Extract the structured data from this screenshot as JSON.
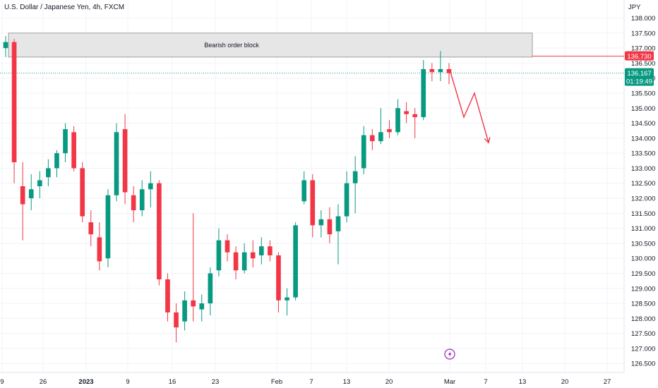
{
  "chart_data": {
    "type": "candlestick",
    "title": "U.S. Dollar / Japanese Yen, 4h, FXCM",
    "y_unit": "JPY",
    "ylim": [
      126.2,
      138.6
    ],
    "y_ticks": [
      "126.500",
      "127.000",
      "127.500",
      "128.000",
      "128.500",
      "129.000",
      "129.500",
      "130.000",
      "130.500",
      "131.000",
      "131.500",
      "132.000",
      "132.500",
      "133.000",
      "133.500",
      "134.000",
      "134.500",
      "135.000",
      "135.500",
      "136.000",
      "136.500",
      "137.000",
      "137.500",
      "138.000"
    ],
    "x_ticks": [
      "9",
      "26",
      "2023",
      "9",
      "16",
      "23",
      "Feb",
      "7",
      "13",
      "20",
      "Mar",
      "7",
      "13",
      "20",
      "27"
    ],
    "x_tick_bold": [
      "2023"
    ],
    "colors": {
      "up": "#089981",
      "down": "#f23645",
      "zone_fill": "#e6e6e6",
      "zone_border": "#9e9e9e",
      "grid": "#f0f3fa",
      "projection": "#f23645",
      "current_price": "#089981",
      "zone_level": "#f23645"
    },
    "annotations": {
      "order_block": {
        "label": "Bearish order block",
        "price_top": 137.5,
        "price_bottom": 136.7
      },
      "zone_level": {
        "price": 136.73,
        "label": "136.730"
      },
      "current_price": {
        "price": 136.167,
        "label": "136.167",
        "countdown": "01:19:49"
      },
      "projection": {
        "points": [
          136.2,
          134.7,
          135.5,
          133.85
        ]
      },
      "event_marker": "lightning-icon"
    },
    "series": [
      {
        "x": "Dec 19",
        "o": 137.0,
        "h": 137.4,
        "l": 136.7,
        "c": 137.2
      },
      {
        "x": "Dec 20",
        "o": 137.2,
        "h": 137.3,
        "l": 132.5,
        "c": 133.2
      },
      {
        "x": "Dec 21",
        "o": 132.4,
        "h": 133.2,
        "l": 130.6,
        "c": 131.8
      },
      {
        "x": "Dec 22",
        "o": 132.0,
        "h": 132.8,
        "l": 131.6,
        "c": 132.3
      },
      {
        "x": "Dec 23",
        "o": 132.4,
        "h": 132.9,
        "l": 132.0,
        "c": 132.6
      },
      {
        "x": "Dec 26",
        "o": 132.7,
        "h": 133.3,
        "l": 132.4,
        "c": 133.0
      },
      {
        "x": "Dec 27",
        "o": 133.0,
        "h": 133.6,
        "l": 132.7,
        "c": 133.5
      },
      {
        "x": "Dec 28",
        "o": 133.5,
        "h": 134.5,
        "l": 133.2,
        "c": 134.3
      },
      {
        "x": "Dec 29",
        "o": 134.2,
        "h": 134.4,
        "l": 132.9,
        "c": 133.0
      },
      {
        "x": "Dec 30",
        "o": 133.0,
        "h": 133.2,
        "l": 131.2,
        "c": 131.4
      },
      {
        "x": "Jan 2",
        "o": 131.2,
        "h": 131.6,
        "l": 130.4,
        "c": 130.8
      },
      {
        "x": "Jan 3",
        "o": 130.7,
        "h": 131.2,
        "l": 129.6,
        "c": 129.9
      },
      {
        "x": "Jan 4",
        "o": 130.0,
        "h": 132.3,
        "l": 129.7,
        "c": 132.1
      },
      {
        "x": "Jan 5",
        "o": 132.1,
        "h": 134.5,
        "l": 131.9,
        "c": 134.2
      },
      {
        "x": "Jan 6",
        "o": 134.3,
        "h": 134.8,
        "l": 131.8,
        "c": 132.2
      },
      {
        "x": "Jan 9",
        "o": 132.1,
        "h": 132.4,
        "l": 131.2,
        "c": 131.6
      },
      {
        "x": "Jan 10",
        "o": 131.6,
        "h": 132.6,
        "l": 131.4,
        "c": 132.3
      },
      {
        "x": "Jan 11",
        "o": 132.3,
        "h": 132.9,
        "l": 131.7,
        "c": 132.5
      },
      {
        "x": "Jan 12",
        "o": 132.5,
        "h": 132.6,
        "l": 129.1,
        "c": 129.3
      },
      {
        "x": "Jan 13",
        "o": 129.3,
        "h": 129.5,
        "l": 127.9,
        "c": 128.2
      },
      {
        "x": "Jan 16",
        "o": 128.2,
        "h": 128.5,
        "l": 127.2,
        "c": 127.7
      },
      {
        "x": "Jan 17",
        "o": 127.9,
        "h": 128.9,
        "l": 127.6,
        "c": 128.6
      },
      {
        "x": "Jan 18",
        "o": 128.6,
        "h": 131.5,
        "l": 127.9,
        "c": 128.4
      },
      {
        "x": "Jan 19",
        "o": 128.3,
        "h": 128.8,
        "l": 127.9,
        "c": 128.5
      },
      {
        "x": "Jan 20",
        "o": 128.5,
        "h": 129.7,
        "l": 128.1,
        "c": 129.5
      },
      {
        "x": "Jan 23",
        "o": 129.6,
        "h": 131.0,
        "l": 129.4,
        "c": 130.6
      },
      {
        "x": "Jan 24",
        "o": 130.6,
        "h": 130.8,
        "l": 129.9,
        "c": 130.2
      },
      {
        "x": "Jan 25",
        "o": 130.2,
        "h": 130.4,
        "l": 129.3,
        "c": 129.6
      },
      {
        "x": "Jan 26",
        "o": 129.6,
        "h": 130.5,
        "l": 129.5,
        "c": 130.2
      },
      {
        "x": "Jan 27",
        "o": 130.2,
        "h": 130.6,
        "l": 129.7,
        "c": 130.0
      },
      {
        "x": "Jan 30",
        "o": 130.1,
        "h": 130.7,
        "l": 129.8,
        "c": 130.4
      },
      {
        "x": "Jan 31",
        "o": 130.4,
        "h": 130.6,
        "l": 129.9,
        "c": 130.1
      },
      {
        "x": "Feb 1",
        "o": 130.1,
        "h": 130.2,
        "l": 128.2,
        "c": 128.6
      },
      {
        "x": "Feb 2",
        "o": 128.6,
        "h": 129.0,
        "l": 128.1,
        "c": 128.7
      },
      {
        "x": "Feb 3",
        "o": 128.7,
        "h": 131.2,
        "l": 128.6,
        "c": 131.1
      },
      {
        "x": "Feb 6",
        "o": 131.9,
        "h": 132.9,
        "l": 131.8,
        "c": 132.6
      },
      {
        "x": "Feb 7",
        "o": 132.6,
        "h": 132.8,
        "l": 130.7,
        "c": 131.1
      },
      {
        "x": "Feb 8",
        "o": 131.1,
        "h": 131.6,
        "l": 130.7,
        "c": 131.3
      },
      {
        "x": "Feb 9",
        "o": 131.3,
        "h": 131.7,
        "l": 130.5,
        "c": 130.8
      },
      {
        "x": "Feb 10",
        "o": 130.9,
        "h": 131.8,
        "l": 129.8,
        "c": 131.4
      },
      {
        "x": "Feb 13",
        "o": 131.4,
        "h": 132.9,
        "l": 131.2,
        "c": 132.5
      },
      {
        "x": "Feb 14",
        "o": 132.5,
        "h": 133.4,
        "l": 131.5,
        "c": 132.9
      },
      {
        "x": "Feb 15",
        "o": 133.0,
        "h": 134.4,
        "l": 132.8,
        "c": 134.1
      },
      {
        "x": "Feb 16",
        "o": 134.1,
        "h": 134.3,
        "l": 133.6,
        "c": 133.9
      },
      {
        "x": "Feb 17",
        "o": 133.9,
        "h": 135.0,
        "l": 133.8,
        "c": 134.2
      },
      {
        "x": "Feb 20",
        "o": 134.3,
        "h": 134.6,
        "l": 134.0,
        "c": 134.2
      },
      {
        "x": "Feb 21",
        "o": 134.2,
        "h": 135.3,
        "l": 134.1,
        "c": 135.0
      },
      {
        "x": "Feb 22",
        "o": 134.9,
        "h": 135.2,
        "l": 134.5,
        "c": 134.8
      },
      {
        "x": "Feb 23",
        "o": 134.8,
        "h": 135.0,
        "l": 134.0,
        "c": 134.7
      },
      {
        "x": "Feb 24",
        "o": 134.7,
        "h": 136.6,
        "l": 134.6,
        "c": 136.3
      },
      {
        "x": "Feb 27",
        "o": 136.3,
        "h": 136.5,
        "l": 135.9,
        "c": 136.2
      },
      {
        "x": "Feb 28",
        "o": 136.2,
        "h": 136.9,
        "l": 135.9,
        "c": 136.3
      },
      {
        "x": "Mar 1",
        "o": 136.3,
        "h": 136.5,
        "l": 135.8,
        "c": 136.167
      }
    ]
  }
}
